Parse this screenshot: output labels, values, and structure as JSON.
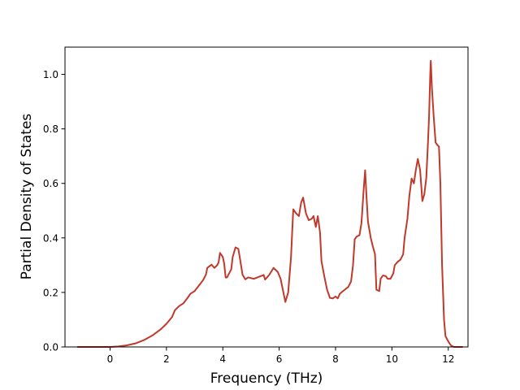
{
  "chart_data": {
    "type": "line",
    "title": "",
    "xlabel": "Frequency (THz)",
    "ylabel": "Partial Density of States",
    "xlim": [
      -1.6,
      12.7
    ],
    "ylim": [
      0.0,
      1.1
    ],
    "xticks": [
      0,
      2,
      4,
      6,
      8,
      10,
      12
    ],
    "yticks": [
      0.0,
      0.2,
      0.4,
      0.6,
      0.8,
      1.0
    ],
    "xtick_labels": [
      "0",
      "2",
      "4",
      "6",
      "8",
      "10",
      "12"
    ],
    "ytick_labels": [
      "0.0",
      "0.2",
      "0.4",
      "0.6",
      "0.8",
      "1.0"
    ],
    "grid": false,
    "legend": "none",
    "series": [
      {
        "color": "#c0392b",
        "points": [
          [
            -1.15,
            0.0
          ],
          [
            0.0,
            0.0
          ],
          [
            0.3,
            0.002
          ],
          [
            0.6,
            0.006
          ],
          [
            0.9,
            0.013
          ],
          [
            1.2,
            0.025
          ],
          [
            1.5,
            0.042
          ],
          [
            1.8,
            0.065
          ],
          [
            2.0,
            0.085
          ],
          [
            2.2,
            0.11
          ],
          [
            2.3,
            0.135
          ],
          [
            2.45,
            0.15
          ],
          [
            2.6,
            0.16
          ],
          [
            2.75,
            0.18
          ],
          [
            2.85,
            0.195
          ],
          [
            3.0,
            0.205
          ],
          [
            3.15,
            0.225
          ],
          [
            3.3,
            0.245
          ],
          [
            3.4,
            0.265
          ],
          [
            3.45,
            0.29
          ],
          [
            3.6,
            0.302
          ],
          [
            3.7,
            0.29
          ],
          [
            3.8,
            0.3
          ],
          [
            3.85,
            0.31
          ],
          [
            3.9,
            0.345
          ],
          [
            4.0,
            0.33
          ],
          [
            4.05,
            0.305
          ],
          [
            4.1,
            0.255
          ],
          [
            4.15,
            0.255
          ],
          [
            4.3,
            0.285
          ],
          [
            4.35,
            0.33
          ],
          [
            4.45,
            0.365
          ],
          [
            4.55,
            0.36
          ],
          [
            4.6,
            0.33
          ],
          [
            4.7,
            0.265
          ],
          [
            4.8,
            0.248
          ],
          [
            4.9,
            0.255
          ],
          [
            5.1,
            0.25
          ],
          [
            5.3,
            0.258
          ],
          [
            5.45,
            0.264
          ],
          [
            5.5,
            0.247
          ],
          [
            5.65,
            0.265
          ],
          [
            5.8,
            0.29
          ],
          [
            5.95,
            0.275
          ],
          [
            6.05,
            0.25
          ],
          [
            6.15,
            0.2
          ],
          [
            6.22,
            0.165
          ],
          [
            6.32,
            0.2
          ],
          [
            6.42,
            0.33
          ],
          [
            6.5,
            0.505
          ],
          [
            6.6,
            0.49
          ],
          [
            6.7,
            0.48
          ],
          [
            6.78,
            0.53
          ],
          [
            6.85,
            0.548
          ],
          [
            6.95,
            0.49
          ],
          [
            7.05,
            0.465
          ],
          [
            7.15,
            0.47
          ],
          [
            7.22,
            0.48
          ],
          [
            7.3,
            0.44
          ],
          [
            7.37,
            0.48
          ],
          [
            7.45,
            0.42
          ],
          [
            7.5,
            0.315
          ],
          [
            7.6,
            0.26
          ],
          [
            7.7,
            0.21
          ],
          [
            7.8,
            0.18
          ],
          [
            7.9,
            0.178
          ],
          [
            8.0,
            0.185
          ],
          [
            8.08,
            0.178
          ],
          [
            8.15,
            0.195
          ],
          [
            8.3,
            0.208
          ],
          [
            8.45,
            0.22
          ],
          [
            8.55,
            0.24
          ],
          [
            8.62,
            0.3
          ],
          [
            8.68,
            0.395
          ],
          [
            8.75,
            0.405
          ],
          [
            8.85,
            0.41
          ],
          [
            8.92,
            0.455
          ],
          [
            9.0,
            0.58
          ],
          [
            9.05,
            0.648
          ],
          [
            9.1,
            0.55
          ],
          [
            9.15,
            0.46
          ],
          [
            9.25,
            0.4
          ],
          [
            9.32,
            0.37
          ],
          [
            9.4,
            0.34
          ],
          [
            9.45,
            0.21
          ],
          [
            9.55,
            0.205
          ],
          [
            9.6,
            0.25
          ],
          [
            9.68,
            0.262
          ],
          [
            9.78,
            0.26
          ],
          [
            9.85,
            0.25
          ],
          [
            9.95,
            0.25
          ],
          [
            10.05,
            0.27
          ],
          [
            10.1,
            0.3
          ],
          [
            10.2,
            0.312
          ],
          [
            10.3,
            0.32
          ],
          [
            10.4,
            0.34
          ],
          [
            10.45,
            0.4
          ],
          [
            10.55,
            0.47
          ],
          [
            10.62,
            0.555
          ],
          [
            10.7,
            0.618
          ],
          [
            10.78,
            0.6
          ],
          [
            10.85,
            0.65
          ],
          [
            10.92,
            0.69
          ],
          [
            11.0,
            0.65
          ],
          [
            11.05,
            0.58
          ],
          [
            11.08,
            0.535
          ],
          [
            11.15,
            0.56
          ],
          [
            11.22,
            0.62
          ],
          [
            11.28,
            0.75
          ],
          [
            11.32,
            0.85
          ],
          [
            11.36,
            1.0
          ],
          [
            11.38,
            1.05
          ],
          [
            11.42,
            0.95
          ],
          [
            11.48,
            0.85
          ],
          [
            11.55,
            0.75
          ],
          [
            11.62,
            0.74
          ],
          [
            11.67,
            0.735
          ],
          [
            11.72,
            0.6
          ],
          [
            11.78,
            0.3
          ],
          [
            11.85,
            0.1
          ],
          [
            11.9,
            0.04
          ],
          [
            11.96,
            0.028
          ],
          [
            12.03,
            0.015
          ],
          [
            12.1,
            0.005
          ],
          [
            12.2,
            0.0
          ],
          [
            12.5,
            0.0
          ]
        ]
      }
    ]
  }
}
